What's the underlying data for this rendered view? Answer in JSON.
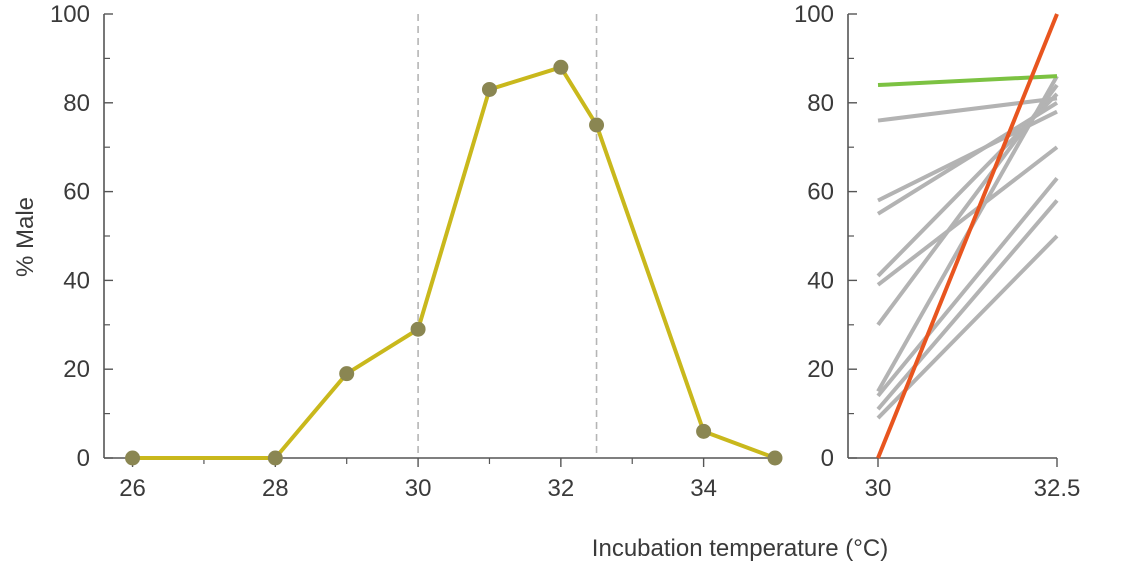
{
  "chart_data": [
    {
      "type": "line",
      "x": [
        26,
        28,
        29,
        30,
        31,
        32,
        32.5,
        34,
        35
      ],
      "series": [
        {
          "values": [
            0,
            0,
            19,
            29,
            83,
            88,
            75,
            6,
            0
          ],
          "color": "#c9b81c",
          "marker_color": "#8a8652"
        }
      ],
      "xlim": [
        25.6,
        35
      ],
      "ylim": [
        0,
        100
      ],
      "xticks": [
        "26",
        "28",
        "30",
        "32",
        "34"
      ],
      "xtick_values": [
        26,
        28,
        30,
        32,
        34
      ],
      "xminor": [
        27,
        29,
        31,
        33
      ],
      "yticks": [
        "0",
        "20",
        "40",
        "60",
        "80",
        "100"
      ],
      "ytick_values": [
        0,
        20,
        40,
        60,
        80,
        100
      ],
      "ylabel": "% Male",
      "reference_lines_x": [
        30,
        32.5
      ],
      "grid": false
    },
    {
      "type": "line",
      "x": [
        30,
        32.5
      ],
      "series": [
        {
          "values": [
            84,
            86
          ],
          "color": "#7cc242"
        },
        {
          "values": [
            0,
            100
          ],
          "color": "#e8551f"
        },
        {
          "values": [
            76,
            81
          ],
          "color": "#b3b3b3"
        },
        {
          "values": [
            58,
            78
          ],
          "color": "#b3b3b3"
        },
        {
          "values": [
            55,
            80
          ],
          "color": "#b3b3b3"
        },
        {
          "values": [
            41,
            82
          ],
          "color": "#b3b3b3"
        },
        {
          "values": [
            39,
            70
          ],
          "color": "#b3b3b3"
        },
        {
          "values": [
            30,
            84
          ],
          "color": "#b3b3b3"
        },
        {
          "values": [
            15,
            86
          ],
          "color": "#b3b3b3"
        },
        {
          "values": [
            14,
            63
          ],
          "color": "#b3b3b3"
        },
        {
          "values": [
            11,
            58
          ],
          "color": "#b3b3b3"
        },
        {
          "values": [
            9,
            50
          ],
          "color": "#b3b3b3"
        }
      ],
      "xlim": [
        30,
        32.5
      ],
      "ylim": [
        0,
        100
      ],
      "xticks": [
        "30",
        "32.5"
      ],
      "xtick_values": [
        30,
        32.5
      ],
      "yticks": [
        "0",
        "20",
        "40",
        "60",
        "80",
        "100"
      ],
      "ytick_values": [
        0,
        20,
        40,
        60,
        80,
        100
      ],
      "grid": false
    }
  ],
  "xlabel": "Incubation temperature (°C)"
}
